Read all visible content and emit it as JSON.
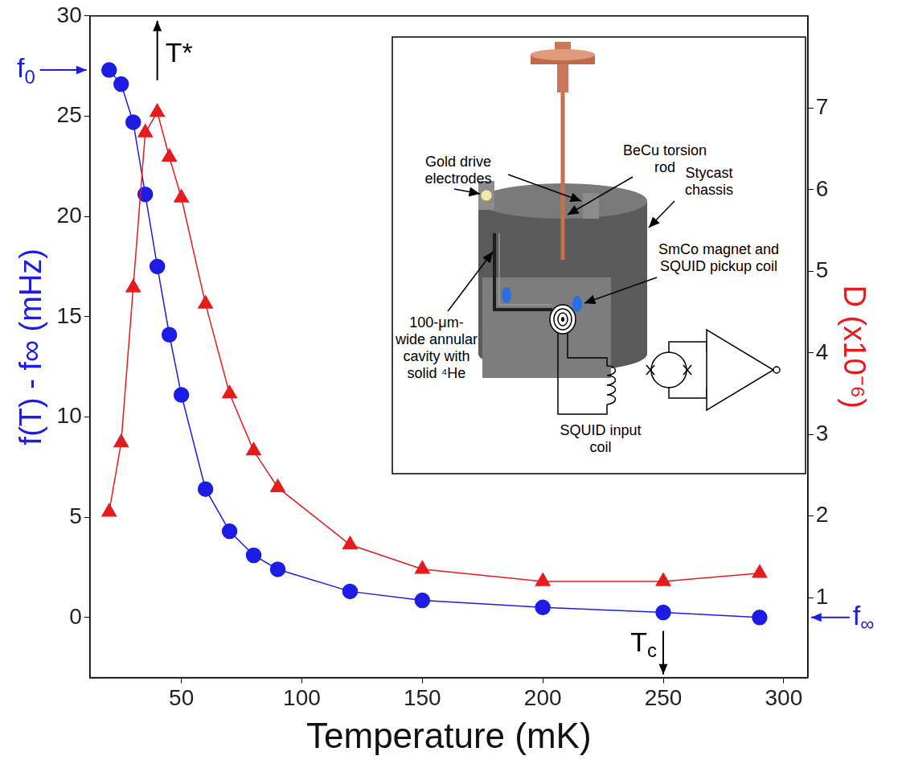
{
  "chart_data": {
    "type": "line",
    "xlabel": "Temperature (mK)",
    "ylabel": "f(T) - f∞ (mHz)",
    "y2label": "D (x10⁻⁶)",
    "x": [
      20,
      25,
      30,
      35,
      40,
      45,
      50,
      60,
      70,
      80,
      90,
      120,
      150,
      200,
      250,
      290
    ],
    "series": [
      {
        "color": "#1c1ce6",
        "marker": "circle",
        "values": [
          27.3,
          26.6,
          24.7,
          21.1,
          17.5,
          14.1,
          11.1,
          6.4,
          4.3,
          3.1,
          2.4,
          1.3,
          0.85,
          0.5,
          0.25,
          0.0
        ]
      },
      {
        "color": "#e61c1c",
        "marker": "triangle",
        "axis": "y2",
        "values": [
          2.05,
          2.9,
          4.8,
          6.7,
          6.95,
          6.4,
          5.9,
          4.6,
          3.5,
          2.8,
          2.35,
          1.65,
          1.35,
          1.2,
          1.2,
          1.3
        ]
      }
    ],
    "xlim": [
      12,
      310
    ],
    "xticks": [
      50,
      100,
      150,
      200,
      250,
      300
    ],
    "ylim": [
      -3,
      30
    ],
    "yticks": [
      0,
      5,
      10,
      15,
      20,
      25,
      30
    ],
    "y2lim": [
      0.02,
      8.13
    ],
    "y2ticks": [
      1,
      2,
      3,
      4,
      5,
      6,
      7
    ],
    "grid": false,
    "annotations": [
      {
        "text": "T*",
        "x": 40
      },
      {
        "text": "Tc",
        "x": 250
      },
      {
        "text": "f0",
        "y": 27.3
      },
      {
        "text": "f∞",
        "y": 0
      }
    ]
  },
  "inset": {
    "labels": {
      "electrodes": "Gold drive electrodes",
      "rod": "BeCu torsion rod",
      "chassis": "Stycast chassis",
      "magnet": "SmCo magnet and SQUID pickup coil",
      "cavity": "100-μm-wide annular cavity with solid ⁴He",
      "input": "SQUID input coil"
    }
  }
}
